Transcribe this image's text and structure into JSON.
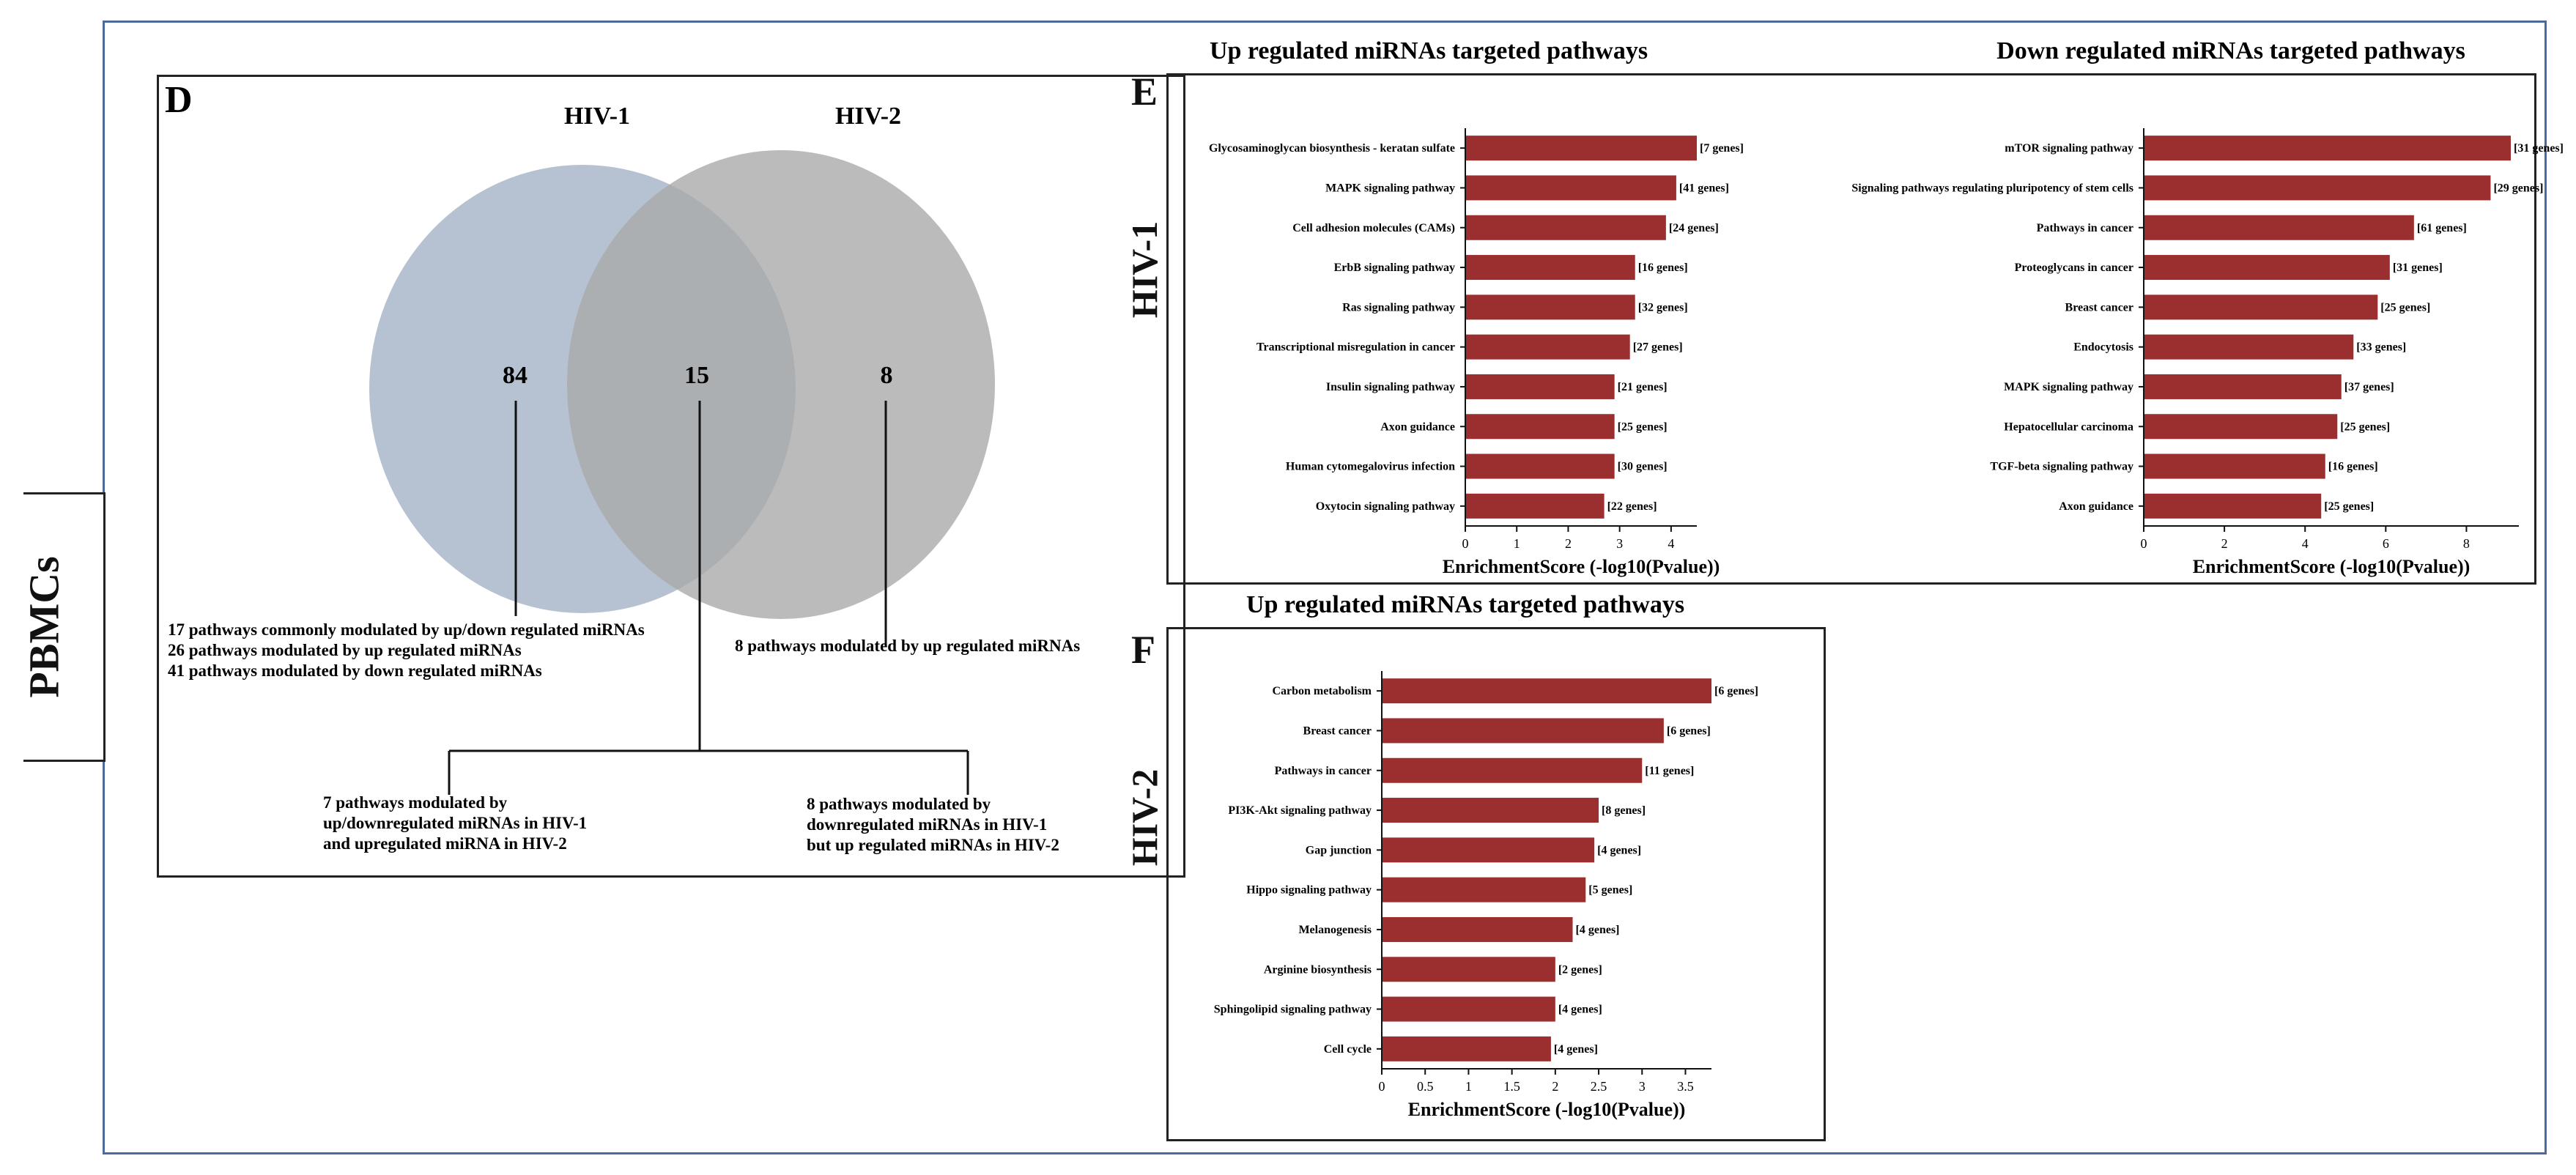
{
  "side_label": "PBMCs",
  "venn": {
    "panel_letter": "D",
    "set_a": "HIV-1",
    "set_b": "HIV-2",
    "count_a_only": "84",
    "count_overlap": "15",
    "count_b_only": "8",
    "colors": {
      "a": "#a9b7c9",
      "b": "#aaaaaa"
    },
    "notes_a": [
      "17 pathways commonly modulated by up/down  regulated miRNAs",
      "26 pathways modulated by up regulated miRNAs",
      "41 pathways modulated by down regulated miRNAs"
    ],
    "note_b": "8 pathways modulated by up regulated miRNAs",
    "note_overlap_left": [
      "7 pathways modulated by",
      "up/downregulated  miRNAs in HIV-1",
      "and upregulated miRNA in HIV-2"
    ],
    "note_overlap_right": [
      "8 pathways modulated by",
      "downregulated  miRNAs in HIV-1",
      "but up regulated miRNAs in  HIV-2"
    ]
  },
  "panel_e_letter": "E",
  "panel_f_letter": "F",
  "row_label_hiv1": "HIV-1",
  "row_label_hiv2": "HIV-2",
  "bar_color": "#9b2f2f",
  "chart_data": [
    {
      "type": "bar",
      "orientation": "horizontal",
      "title": "Up regulated miRNAs targeted pathways",
      "xlabel": "EnrichmentScore (-log10(Pvalue))",
      "ylabel": "",
      "xlim": [
        0,
        4.5
      ],
      "xticks": [
        "0",
        "1",
        "2",
        "3",
        "4"
      ],
      "xtick_values": [
        0,
        1,
        2,
        3,
        4
      ],
      "categories": [
        "Glycosaminoglycan biosynthesis - keratan sulfate",
        "MAPK signaling pathway",
        "Cell adhesion molecules (CAMs)",
        "ErbB signaling pathway",
        "Ras signaling pathway",
        "Transcriptional misregulation in cancer",
        "Insulin signaling pathway",
        "Axon guidance",
        "Human cytomegalovirus infection",
        "Oxytocin signaling pathway"
      ],
      "values": [
        4.5,
        4.1,
        3.9,
        3.3,
        3.3,
        3.2,
        2.9,
        2.9,
        2.9,
        2.7
      ],
      "labels": [
        "[7 genes]",
        "[41 genes]",
        "[24 genes]",
        "[16 genes]",
        "[32 genes]",
        "[27 genes]",
        "[21 genes]",
        "[25 genes]",
        "[30 genes]",
        "[22 genes]"
      ]
    },
    {
      "type": "bar",
      "orientation": "horizontal",
      "title": "Down regulated miRNAs targeted pathways",
      "xlabel": "EnrichmentScore (-log10(Pvalue))",
      "ylabel": "",
      "xlim": [
        0,
        9.3
      ],
      "xticks": [
        "0",
        "2",
        "4",
        "6",
        "8"
      ],
      "xtick_values": [
        0,
        2,
        4,
        6,
        8
      ],
      "categories": [
        "mTOR signaling pathway",
        "Signaling pathways regulating pluripotency of stem cells",
        "Pathways in cancer",
        "Proteoglycans in cancer",
        "Breast cancer",
        "Endocytosis",
        "MAPK signaling pathway",
        "Hepatocellular carcinoma",
        "TGF-beta signaling pathway",
        "Axon guidance"
      ],
      "values": [
        9.1,
        8.6,
        6.7,
        6.1,
        5.8,
        5.2,
        4.9,
        4.8,
        4.5,
        4.4
      ],
      "labels": [
        "[31 genes]",
        "[29 genes]",
        "[61 genes]",
        "[31 genes]",
        "[25 genes]",
        "[33 genes]",
        "[37 genes]",
        "[25 genes]",
        "[16 genes]",
        "[25 genes]"
      ]
    },
    {
      "type": "bar",
      "orientation": "horizontal",
      "title": "Up regulated miRNAs targeted pathways",
      "xlabel": "EnrichmentScore (-log10(Pvalue))",
      "ylabel": "",
      "xlim": [
        0,
        3.8
      ],
      "xticks": [
        "0",
        "0.5",
        "1",
        "1.5",
        "2",
        "2.5",
        "3",
        "3.5"
      ],
      "xtick_values": [
        0,
        0.5,
        1,
        1.5,
        2,
        2.5,
        3,
        3.5
      ],
      "categories": [
        "Carbon metabolism",
        "Breast cancer",
        "Pathways in cancer",
        "PI3K-Akt signaling pathway",
        "Gap junction",
        "Hippo signaling pathway",
        "Melanogenesis",
        "Arginine biosynthesis",
        "Sphingolipid signaling pathway",
        "Cell cycle"
      ],
      "values": [
        3.8,
        3.25,
        3.0,
        2.5,
        2.45,
        2.35,
        2.2,
        2.0,
        2.0,
        1.95
      ],
      "labels": [
        "[6 genes]",
        "[6 genes]",
        "[11 genes]",
        "[8 genes]",
        "[4 genes]",
        "[5 genes]",
        "[4 genes]",
        "[2 genes]",
        "[4 genes]",
        "[4 genes]"
      ]
    }
  ]
}
